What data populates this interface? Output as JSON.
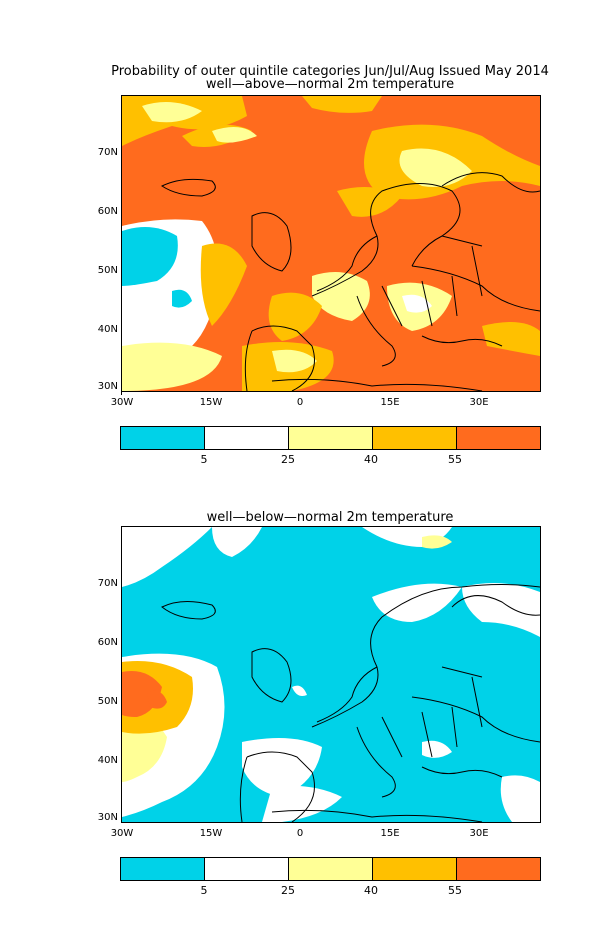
{
  "header": {
    "title": "Probability of outer quintile categories Jun/Jul/Aug Issued May 2014",
    "subtitle_above": "well—above—normal 2m temperature",
    "subtitle_below": "well—below—normal 2m temperature"
  },
  "axes": {
    "lat_labels": [
      "70N",
      "60N",
      "50N",
      "40N",
      "30N"
    ],
    "lon_labels": [
      "30W",
      "15W",
      "0",
      "15E",
      "30E"
    ]
  },
  "colorbar": {
    "labels": [
      "5",
      "25",
      "40",
      "55"
    ],
    "colors": [
      "#00d2e8",
      "#ffffff",
      "#ffff96",
      "#ffc000",
      "#ff6b1e"
    ]
  },
  "maps": [
    {
      "name": "well-above-normal",
      "dominant_color": "#ff6b1e"
    },
    {
      "name": "well-below-normal",
      "dominant_color": "#00d2e8"
    }
  ]
}
